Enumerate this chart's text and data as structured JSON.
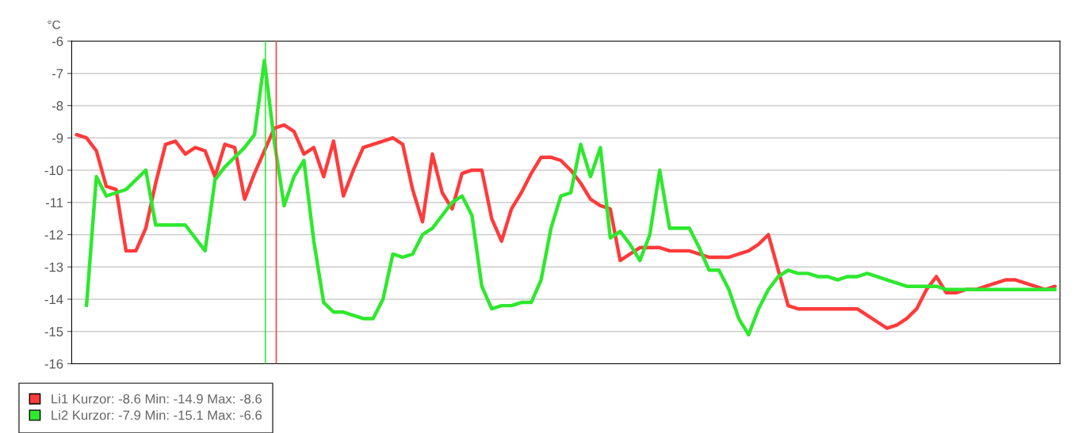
{
  "chart_data": {
    "type": "line",
    "ylabel": "°C",
    "categories": [
      null,
      null,
      null,
      null,
      null,
      null,
      null,
      null,
      null,
      null,
      null,
      null,
      null,
      null,
      null,
      null,
      null,
      null,
      null,
      null,
      null,
      null,
      null,
      null,
      null,
      null,
      null,
      null,
      null,
      null,
      null,
      null,
      null,
      null,
      null,
      null,
      null,
      null,
      null,
      null,
      null,
      null,
      null,
      null,
      null,
      null,
      null,
      null,
      null,
      null,
      null,
      null,
      null,
      null,
      null,
      null,
      null,
      null,
      null,
      null,
      null,
      null,
      null,
      null,
      null,
      null,
      null,
      null,
      null,
      null,
      null,
      null,
      null,
      null,
      null,
      null,
      null,
      null,
      null,
      null,
      null,
      null,
      null,
      null,
      null,
      null,
      null,
      null,
      null,
      null,
      null,
      null,
      null,
      null,
      null,
      null,
      null,
      null,
      null,
      null
    ],
    "series": [
      {
        "name": "Li1 Kurzor: -8.6 Min: -14.9 Max: -8.6",
        "color": "#ff3b3b",
        "values": [
          -8.9,
          -9,
          -9.4,
          -10.5,
          -10.6,
          -12.5,
          -12.5,
          -11.8,
          -10.4,
          -9.2,
          -9.1,
          -9.5,
          -9.3,
          -9.4,
          -10.2,
          -9.2,
          -9.3,
          -10.9,
          -10.1,
          -9.4,
          -8.7,
          -8.6,
          -8.8,
          -9.5,
          -9.3,
          -10.2,
          -9.1,
          -10.8,
          -10,
          -9.3,
          -9.2,
          -9.1,
          -9,
          -9.2,
          -10.6,
          -11.6,
          -9.5,
          -10.7,
          -11.2,
          -10.1,
          -10,
          -10,
          -11.5,
          -12.2,
          -11.2,
          -10.7,
          -10.1,
          -9.6,
          -9.6,
          -9.7,
          -10,
          -10.4,
          -10.9,
          -11.1,
          -11.2,
          -12.8,
          -12.6,
          -12.4,
          -12.4,
          -12.4,
          -12.5,
          -12.5,
          -12.5,
          -12.6,
          -12.7,
          -12.7,
          -12.7,
          -12.6,
          -12.5,
          -12.3,
          -12,
          -13.1,
          -14.2,
          -14.3,
          -14.3,
          -14.3,
          -14.3,
          -14.3,
          -14.3,
          -14.3,
          -14.5,
          -14.7,
          -14.9,
          -14.8,
          -14.6,
          -14.3,
          -13.7,
          -13.3,
          -13.8,
          -13.8,
          -13.7,
          -13.7,
          -13.6,
          -13.5,
          -13.4,
          -13.4,
          -13.5,
          -13.6,
          -13.7,
          -13.6
        ]
      },
      {
        "name": "Li2 Kurzor: -7.9 Min: -15.1 Max: -6.6",
        "color": "#2ee82e",
        "values": [
          null,
          -14.2,
          -10.2,
          -10.8,
          -10.7,
          -10.6,
          -10.3,
          -10.0,
          -11.7,
          -11.7,
          -11.7,
          -11.7,
          -12.1,
          -12.5,
          -10.3,
          -9.9,
          -9.6,
          -9.3,
          -8.9,
          -6.6,
          -9.1,
          -11.1,
          -10.2,
          -9.7,
          -12.2,
          -14.1,
          -14.4,
          -14.4,
          -14.5,
          -14.6,
          -14.6,
          -14.0,
          -12.6,
          -12.7,
          -12.6,
          -12.0,
          -11.8,
          -11.4,
          -11.0,
          -10.8,
          -11.4,
          -13.6,
          -14.3,
          -14.2,
          -14.2,
          -14.1,
          -14.1,
          -13.4,
          -11.8,
          -10.8,
          -10.7,
          -9.2,
          -10.2,
          -9.3,
          -12.1,
          -11.9,
          -12.3,
          -12.8,
          -12.0,
          -10.0,
          -11.8,
          -11.8,
          -11.8,
          -12.4,
          -13.1,
          -13.1,
          -13.7,
          -14.6,
          -15.1,
          -14.3,
          -13.7,
          -13.3,
          -13.1,
          -13.2,
          -13.2,
          -13.3,
          -13.3,
          -13.4,
          -13.3,
          -13.3,
          -13.2,
          -13.3,
          -13.4,
          -13.5,
          -13.6,
          -13.6,
          -13.6,
          -13.6,
          -13.7,
          -13.7,
          -13.7,
          -13.7,
          -13.7,
          -13.7,
          -13.7,
          -13.7,
          -13.7,
          -13.7,
          -13.7,
          -13.7
        ]
      }
    ],
    "ylim": [
      -16,
      -6
    ],
    "yticks": [
      -16,
      -15,
      -14,
      -13,
      -12,
      -11,
      -10,
      -9,
      -8,
      -7,
      -6
    ],
    "grid": "y",
    "legend": "bottom",
    "tick_labels": "y",
    "line_style": "solid",
    "marker": "none"
  }
}
